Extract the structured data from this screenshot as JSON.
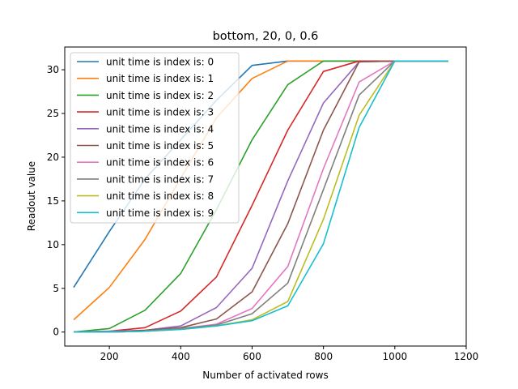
{
  "chart_data": {
    "type": "line",
    "title": "bottom, 20, 0, 0.6",
    "xlabel": "Number of activated rows",
    "ylabel": "Readout value",
    "xlim": [
      75,
      1200
    ],
    "ylim": [
      -1.6,
      32.6
    ],
    "xticks": [
      200,
      400,
      600,
      800,
      1000,
      1200
    ],
    "yticks": [
      0,
      5,
      10,
      15,
      20,
      25,
      30
    ],
    "grid": false,
    "legend_position": "upper-left",
    "x": [
      100,
      200,
      300,
      400,
      500,
      600,
      700,
      800,
      900,
      1000,
      1150
    ],
    "series": [
      {
        "name": "unit time is index is: 0",
        "color": "#1f77b4",
        "values": [
          5.1,
          11.5,
          17.5,
          22.0,
          26.5,
          30.5,
          31.0,
          31.0,
          31.0,
          31.0,
          31.0
        ]
      },
      {
        "name": "unit time is index is: 1",
        "color": "#ff7f0e",
        "values": [
          1.4,
          5.1,
          10.6,
          17.6,
          24.5,
          29.0,
          31.0,
          31.0,
          31.0,
          31.0,
          31.0
        ]
      },
      {
        "name": "unit time is index is: 2",
        "color": "#2ca02c",
        "values": [
          0.0,
          0.4,
          2.5,
          6.7,
          14.0,
          22.0,
          28.3,
          31.0,
          31.0,
          31.0,
          31.0
        ]
      },
      {
        "name": "unit time is index is: 3",
        "color": "#d62728",
        "values": [
          0.0,
          0.1,
          0.5,
          2.4,
          6.3,
          14.5,
          23.1,
          29.8,
          31.0,
          31.0,
          31.0
        ]
      },
      {
        "name": "unit time is index is: 4",
        "color": "#9467bd",
        "values": [
          0.0,
          0.1,
          0.2,
          0.7,
          2.8,
          7.3,
          17.3,
          26.2,
          30.9,
          31.0,
          31.0
        ]
      },
      {
        "name": "unit time is index is: 5",
        "color": "#8c564b",
        "values": [
          0.0,
          0.0,
          0.2,
          0.5,
          1.5,
          4.6,
          12.4,
          23.1,
          30.9,
          31.0,
          31.0
        ]
      },
      {
        "name": "unit time is index is: 6",
        "color": "#e377c2",
        "values": [
          0.0,
          0.0,
          0.1,
          0.4,
          0.9,
          2.7,
          7.5,
          18.7,
          28.6,
          31.0,
          31.0
        ]
      },
      {
        "name": "unit time is index is: 7",
        "color": "#7f7f7f",
        "values": [
          0.0,
          0.0,
          0.1,
          0.4,
          0.8,
          2.1,
          5.6,
          16.3,
          27.1,
          31.0,
          31.0
        ]
      },
      {
        "name": "unit time is index is: 8",
        "color": "#bcbd22",
        "values": [
          0.0,
          0.0,
          0.1,
          0.3,
          0.7,
          1.4,
          3.5,
          12.9,
          24.8,
          31.0,
          31.0
        ]
      },
      {
        "name": "unit time is index is: 9",
        "color": "#17becf",
        "values": [
          0.0,
          0.0,
          0.1,
          0.3,
          0.7,
          1.3,
          3.0,
          10.1,
          23.4,
          31.0,
          31.0
        ]
      }
    ]
  }
}
